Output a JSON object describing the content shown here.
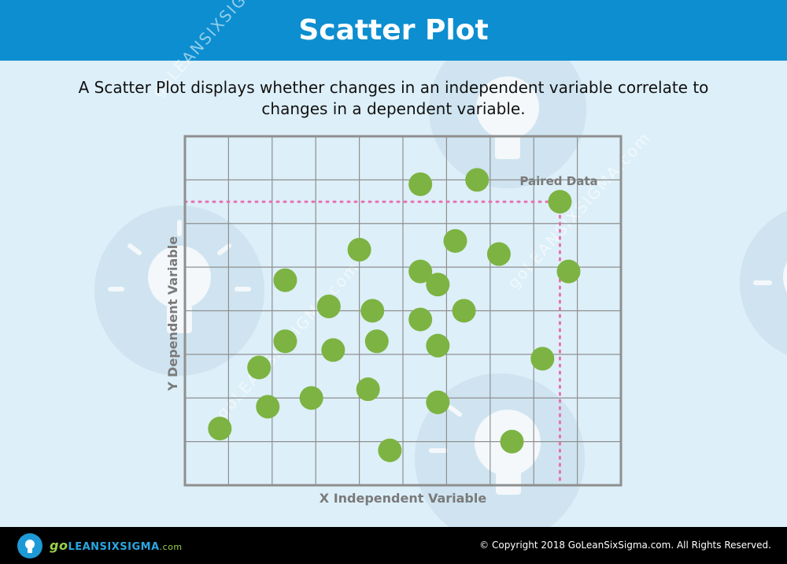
{
  "header": {
    "title": "Scatter Plot"
  },
  "description": "A Scatter Plot displays whether changes in an independent variable correlate to changes in a dependent variable.",
  "watermark": "goLEANSIXSIGMA.com",
  "footer": {
    "logo_go": "go",
    "logo_name": "LEANSIXSIGMA",
    "logo_com": ".com",
    "copyright": "© Copyright 2018 GoLeanSixSigma.com. All Rights Reserved."
  },
  "colors": {
    "header": "#0d8ed0",
    "background": "#ddeff8",
    "point": "#7cb342",
    "grid": "#8f8f8f",
    "guide": "#e86fb0"
  },
  "chart_data": {
    "type": "scatter",
    "title": "",
    "xlabel": "X Independent Variable",
    "ylabel": "Y Dependent Variable",
    "xlim": [
      0,
      10
    ],
    "ylim": [
      0,
      8
    ],
    "grid": true,
    "tick_labels": false,
    "annotation": {
      "text": "Paired Data",
      "point_index": 0,
      "dotted_guides": true
    },
    "points": [
      {
        "x": 8.6,
        "y": 6.5
      },
      {
        "x": 7.5,
        "y": 1.0
      },
      {
        "x": 8.8,
        "y": 4.9
      },
      {
        "x": 6.7,
        "y": 7.0
      },
      {
        "x": 6.2,
        "y": 5.6
      },
      {
        "x": 7.2,
        "y": 5.3
      },
      {
        "x": 8.2,
        "y": 2.9
      },
      {
        "x": 5.4,
        "y": 6.9
      },
      {
        "x": 5.4,
        "y": 4.9
      },
      {
        "x": 5.8,
        "y": 4.6
      },
      {
        "x": 6.4,
        "y": 4.0
      },
      {
        "x": 5.4,
        "y": 3.8
      },
      {
        "x": 4.0,
        "y": 5.4
      },
      {
        "x": 4.3,
        "y": 4.0
      },
      {
        "x": 4.4,
        "y": 3.3
      },
      {
        "x": 5.8,
        "y": 3.2
      },
      {
        "x": 3.3,
        "y": 4.1
      },
      {
        "x": 2.3,
        "y": 4.7
      },
      {
        "x": 3.4,
        "y": 3.1
      },
      {
        "x": 2.3,
        "y": 3.3
      },
      {
        "x": 1.7,
        "y": 2.7
      },
      {
        "x": 4.2,
        "y": 2.2
      },
      {
        "x": 5.8,
        "y": 1.9
      },
      {
        "x": 2.9,
        "y": 2.0
      },
      {
        "x": 1.9,
        "y": 1.8
      },
      {
        "x": 0.8,
        "y": 1.3
      },
      {
        "x": 4.7,
        "y": 0.8
      }
    ]
  }
}
